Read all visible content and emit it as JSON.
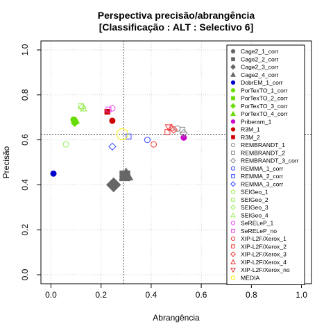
{
  "chart_data": {
    "type": "scatter",
    "title": "Perspectiva precisão/abrangência",
    "subtitle": "[Classificação : ALT : Selectivo 6]",
    "xlabel": "Abrangência",
    "ylabel": "Precisão",
    "xlim": [
      -0.04,
      1.04
    ],
    "ylim": [
      -0.04,
      1.04
    ],
    "xticks": [
      "0.0",
      "0.2",
      "0.4",
      "0.6",
      "0.8",
      "1.0"
    ],
    "yticks": [
      "0.0",
      "0.2",
      "0.4",
      "0.6",
      "0.8",
      "1.0"
    ],
    "grid": true,
    "reference_lines": {
      "x": 0.29,
      "y": 0.625
    },
    "legend_position": "top-right",
    "series": [
      {
        "name": "Cage2_1_corr",
        "color": "#666666",
        "shape": "circle",
        "fill": true,
        "points": []
      },
      {
        "name": "Cage2_2_corr",
        "color": "#666666",
        "shape": "square",
        "fill": true,
        "size": 2,
        "points": [
          [
            0.295,
            0.44
          ]
        ]
      },
      {
        "name": "Cage2_3_corr",
        "color": "#666666",
        "shape": "diamond",
        "fill": true,
        "size": 2,
        "points": [
          [
            0.25,
            0.4
          ]
        ]
      },
      {
        "name": "Cage2_4_corr",
        "color": "#666666",
        "shape": "triangle",
        "fill": true,
        "size": 2,
        "points": [
          [
            0.3,
            0.445
          ]
        ]
      },
      {
        "name": "DobrEM_1_corr",
        "color": "#0000cc",
        "shape": "circle",
        "fill": true,
        "points": [
          [
            0.01,
            0.45
          ]
        ]
      },
      {
        "name": "PorTexTO_1_corr",
        "color": "#66dd00",
        "shape": "circle",
        "fill": true,
        "points": [
          [
            0.09,
            0.69
          ]
        ]
      },
      {
        "name": "PorTexTO_2_corr",
        "color": "#66dd00",
        "shape": "square",
        "fill": true,
        "points": [
          [
            0.095,
            0.68
          ]
        ]
      },
      {
        "name": "PorTexTO_3_corr",
        "color": "#66dd00",
        "shape": "diamond",
        "fill": true,
        "points": [
          [
            0.095,
            0.675
          ]
        ]
      },
      {
        "name": "PorTexTO_4_corr",
        "color": "#66dd00",
        "shape": "triangle",
        "fill": true,
        "points": [
          [
            0.1,
            0.685
          ]
        ]
      },
      {
        "name": "Priberam_1",
        "color": "#cc00cc",
        "shape": "circle",
        "fill": true,
        "points": [
          [
            0.53,
            0.61
          ]
        ]
      },
      {
        "name": "R3M_1",
        "color": "#cc0000",
        "shape": "circle",
        "fill": true,
        "points": [
          [
            0.245,
            0.685
          ]
        ]
      },
      {
        "name": "R3M_2",
        "color": "#cc0000",
        "shape": "square",
        "fill": true,
        "points": [
          [
            0.225,
            0.725
          ]
        ]
      },
      {
        "name": "REMBRANDT_1",
        "color": "#888888",
        "shape": "circle",
        "fill": false,
        "points": [
          [
            0.505,
            0.65
          ]
        ]
      },
      {
        "name": "REMBRANDT_2",
        "color": "#888888",
        "shape": "square",
        "fill": false,
        "points": [
          [
            0.525,
            0.645
          ]
        ]
      },
      {
        "name": "REMBRANDT_3_corr",
        "color": "#888888",
        "shape": "diamond",
        "fill": false,
        "points": [
          [
            0.53,
            0.63
          ]
        ]
      },
      {
        "name": "REMMA_1_corr",
        "color": "#3344ff",
        "shape": "circle",
        "fill": false,
        "points": [
          [
            0.385,
            0.6
          ]
        ]
      },
      {
        "name": "REMMA_2_corr",
        "color": "#3344ff",
        "shape": "square",
        "fill": false,
        "points": [
          [
            0.31,
            0.615
          ]
        ]
      },
      {
        "name": "REMMA_3_corr",
        "color": "#3344ff",
        "shape": "diamond",
        "fill": false,
        "points": [
          [
            0.245,
            0.57
          ]
        ]
      },
      {
        "name": "SEIGeo_1",
        "color": "#99ee55",
        "shape": "circle",
        "fill": false,
        "points": [
          [
            0.06,
            0.58
          ]
        ]
      },
      {
        "name": "SEIGeo_2",
        "color": "#99ee55",
        "shape": "square",
        "fill": false,
        "points": [
          [
            0.12,
            0.75
          ]
        ]
      },
      {
        "name": "SEIGeo_3",
        "color": "#99ee55",
        "shape": "diamond",
        "fill": false,
        "points": [
          [
            0.125,
            0.745
          ]
        ]
      },
      {
        "name": "SEIGeo_4",
        "color": "#99ee55",
        "shape": "triangle",
        "fill": false,
        "points": [
          [
            0.13,
            0.74
          ]
        ]
      },
      {
        "name": "SeRELeP_1",
        "color": "#ee44ee",
        "shape": "circle",
        "fill": false,
        "points": [
          [
            0.245,
            0.74
          ]
        ]
      },
      {
        "name": "SeRELeP_no",
        "color": "#ee44ee",
        "shape": "square",
        "fill": false,
        "points": [
          [
            0.23,
            0.735
          ]
        ]
      },
      {
        "name": "XIP-L2F/Xerox_1",
        "color": "#ee3333",
        "shape": "circle",
        "fill": false,
        "points": [
          [
            0.41,
            0.58
          ]
        ]
      },
      {
        "name": "XIP-L2F/Xerox_2",
        "color": "#ee3333",
        "shape": "square",
        "fill": false,
        "points": [
          [
            0.465,
            0.635
          ]
        ]
      },
      {
        "name": "XIP-L2F/Xerox_3",
        "color": "#ee3333",
        "shape": "diamond",
        "fill": false,
        "points": [
          [
            0.49,
            0.645
          ]
        ]
      },
      {
        "name": "XIP-L2F/Xerox_4",
        "color": "#ee3333",
        "shape": "triangle",
        "fill": false,
        "points": [
          [
            0.48,
            0.655
          ]
        ]
      },
      {
        "name": "XIP-L2F/Xerox_no",
        "color": "#ee3333",
        "shape": "invtriangle",
        "fill": false,
        "points": [
          [
            0.47,
            0.655
          ]
        ]
      },
      {
        "name": "MÉDIA",
        "color": "#ffee00",
        "shape": "circle",
        "fill": false,
        "size": 2,
        "points": [
          [
            0.285,
            0.625
          ]
        ]
      }
    ]
  }
}
